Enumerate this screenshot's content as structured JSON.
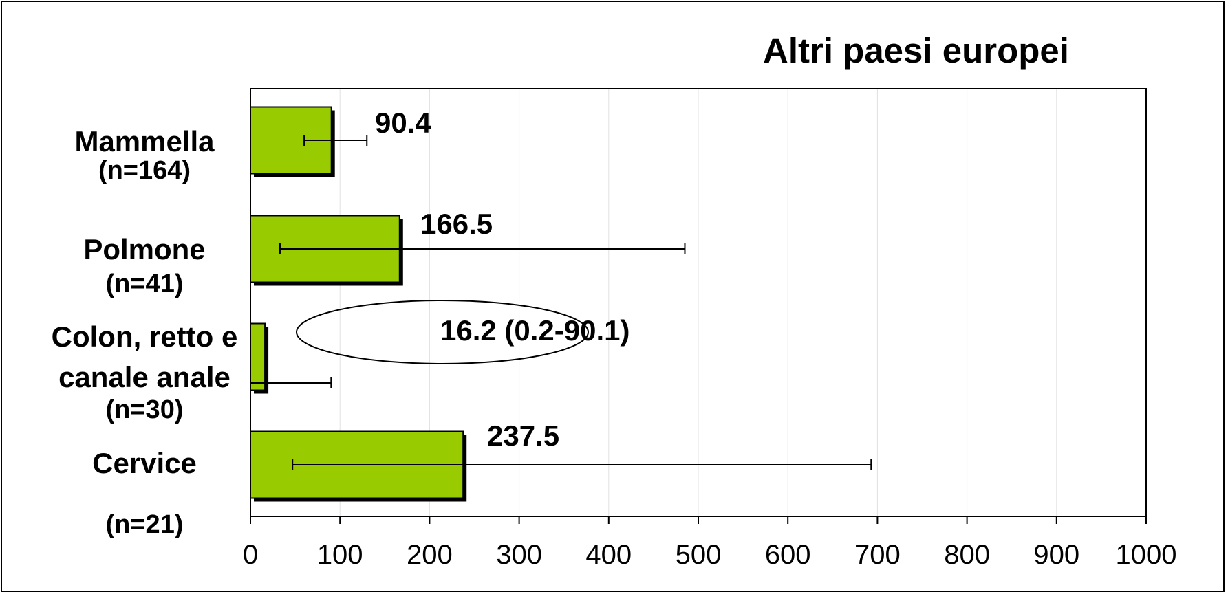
{
  "chart_data": {
    "type": "bar",
    "orientation": "horizontal",
    "title": "Altri paesi europei",
    "categories": [
      {
        "lines": [
          "Mammella"
        ],
        "n": "(n=164)"
      },
      {
        "lines": [
          "Polmone"
        ],
        "n": "(n=41)"
      },
      {
        "lines": [
          "Colon, retto e",
          "canale anale"
        ],
        "n": "(n=30)"
      },
      {
        "lines": [
          "Cervice"
        ],
        "n": "(n=21)"
      }
    ],
    "values": [
      90.4,
      166.5,
      16.2,
      237.5
    ],
    "error_low": [
      60,
      33,
      0.2,
      47
    ],
    "error_high": [
      130,
      485,
      90.1,
      693
    ],
    "data_labels": [
      "90.4",
      "166.5",
      "16.2 (0.2-90.1)",
      "237.5"
    ],
    "highlighted_label_index": 2,
    "xlim": [
      0,
      1000
    ],
    "xticks": [
      "0",
      "100",
      "200",
      "300",
      "400",
      "500",
      "600",
      "700",
      "800",
      "900",
      "1000"
    ],
    "grid": true,
    "colors": {
      "bar": "#99cc00",
      "bar_shadow": "#000000",
      "grid": "#e0e0e0",
      "axis": "#000000"
    }
  }
}
